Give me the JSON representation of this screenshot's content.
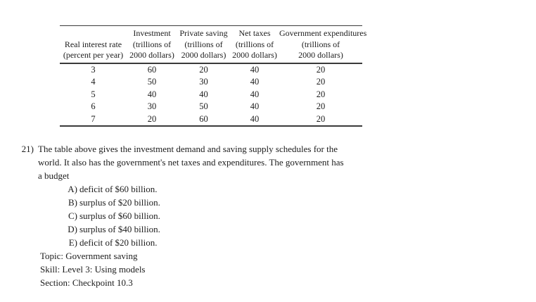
{
  "page": {
    "background_color": "#ffffff",
    "text_color": "#1c1c1c",
    "table_border_color": "#3a3a3a"
  },
  "table": {
    "columns": [
      {
        "line1": "",
        "line2": "Real interest rate",
        "line3": "(percent per year)"
      },
      {
        "line1": "Investment",
        "line2": "(trillions of",
        "line3": "2000 dollars)"
      },
      {
        "line1": "Private saving",
        "line2": "(trillions of",
        "line3": "2000 dollars)"
      },
      {
        "line1": "Net taxes",
        "line2": "(trillions of",
        "line3": "2000 dollars)"
      },
      {
        "line1": "Government expenditures",
        "line2": "(trillions of",
        "line3": "2000 dollars)"
      }
    ],
    "rows": [
      [
        "3",
        "60",
        "20",
        "40",
        "20"
      ],
      [
        "4",
        "50",
        "30",
        "40",
        "20"
      ],
      [
        "5",
        "40",
        "40",
        "40",
        "20"
      ],
      [
        "6",
        "30",
        "50",
        "40",
        "20"
      ],
      [
        "7",
        "20",
        "60",
        "40",
        "20"
      ]
    ]
  },
  "question": {
    "number": "21)",
    "lines": [
      "The table above gives the investment demand and saving supply schedules for the",
      "world. It also has the government's net taxes and expenditures. The government has",
      "a budget"
    ],
    "choices": [
      {
        "label": "A)",
        "text": "deficit of $60 billion."
      },
      {
        "label": "B)",
        "text": "surplus of $20 billion."
      },
      {
        "label": "C)",
        "text": "surplus of $60 billion."
      },
      {
        "label": "D)",
        "text": "surplus of $40 billion."
      },
      {
        "label": "E)",
        "text": "deficit of $20 billion."
      }
    ],
    "meta": [
      "Topic: Government saving",
      "Skill: Level 3: Using models",
      "Section: Checkpoint 10.3"
    ]
  }
}
